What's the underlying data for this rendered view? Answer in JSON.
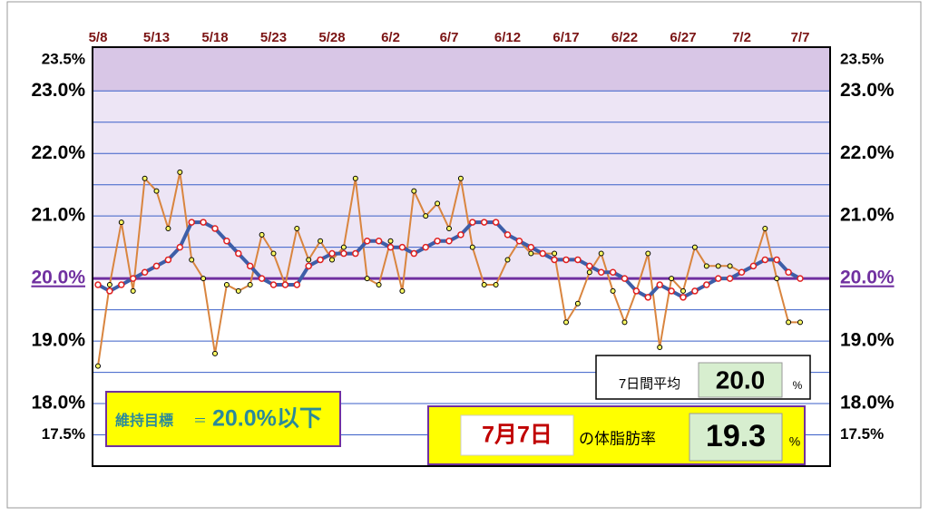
{
  "chart_data": {
    "type": "line",
    "categories": [
      "5/8",
      null,
      null,
      null,
      null,
      "5/13",
      null,
      null,
      null,
      null,
      "5/18",
      null,
      null,
      null,
      null,
      "5/23",
      null,
      null,
      null,
      null,
      "5/28",
      null,
      null,
      null,
      null,
      "6/2",
      null,
      null,
      null,
      null,
      "6/7",
      null,
      null,
      null,
      null,
      "6/12",
      null,
      null,
      null,
      null,
      "6/17",
      null,
      null,
      null,
      null,
      "6/22",
      null,
      null,
      null,
      null,
      "6/27",
      null,
      null,
      null,
      null,
      "7/2",
      null,
      null,
      null,
      null,
      "7/7"
    ],
    "series": [
      {
        "color": "#d9853f",
        "marker_color": "#ffff66",
        "values": [
          18.6,
          19.9,
          20.9,
          19.8,
          21.6,
          21.4,
          20.8,
          21.7,
          20.3,
          20.0,
          18.8,
          19.9,
          19.8,
          19.9,
          20.7,
          20.4,
          19.9,
          20.8,
          20.3,
          20.6,
          20.3,
          20.5,
          21.6,
          20.0,
          19.9,
          20.6,
          19.8,
          21.4,
          21.0,
          21.2,
          20.8,
          21.6,
          20.5,
          19.9,
          19.9,
          20.3,
          20.6,
          20.4,
          20.4,
          20.4,
          19.3,
          19.6,
          20.1,
          20.4,
          19.8,
          19.3,
          19.8,
          20.4,
          18.9,
          20.0,
          19.8,
          20.5,
          20.2,
          20.2,
          20.2,
          20.1,
          20.2,
          20.8,
          20.0,
          19.3,
          19.3
        ]
      },
      {
        "color": "#3d5ea8",
        "marker_color": "#e02020",
        "values": [
          19.9,
          19.8,
          19.9,
          20.0,
          20.1,
          20.2,
          20.3,
          20.5,
          20.9,
          20.9,
          20.8,
          20.6,
          20.4,
          20.2,
          20.0,
          19.9,
          19.9,
          19.9,
          20.2,
          20.3,
          20.4,
          20.4,
          20.4,
          20.6,
          20.6,
          20.5,
          20.5,
          20.4,
          20.5,
          20.6,
          20.6,
          20.7,
          20.9,
          20.9,
          20.9,
          20.7,
          20.6,
          20.5,
          20.4,
          20.3,
          20.3,
          20.3,
          20.2,
          20.1,
          20.1,
          20.0,
          19.8,
          19.7,
          19.9,
          19.8,
          19.7,
          19.8,
          19.9,
          20.0,
          20.0,
          20.1,
          20.2,
          20.3,
          20.3,
          20.1,
          20.0
        ]
      }
    ],
    "ylim": [
      17.0,
      23.7
    ],
    "yticks": [
      {
        "value": 23.5,
        "label": "23.5%"
      },
      {
        "value": 23.0,
        "label": "23.0%"
      },
      {
        "value": 22.0,
        "label": "22.0%"
      },
      {
        "value": 21.0,
        "label": "21.0%"
      },
      {
        "value": 20.0,
        "label": "20.0%"
      },
      {
        "value": 19.0,
        "label": "19.0%"
      },
      {
        "value": 18.0,
        "label": "18.0%"
      },
      {
        "value": 17.5,
        "label": "17.5%"
      }
    ],
    "grid_lines": [
      17.5,
      18.0,
      18.5,
      19.0,
      19.5,
      20.0,
      20.5,
      21.0,
      21.5,
      22.0,
      22.5,
      23.0
    ],
    "zones": [
      {
        "from": 23.0,
        "to": 23.7,
        "color": "#d8c6e6"
      },
      {
        "from": 20.0,
        "to": 23.0,
        "color": "#ede5f5"
      }
    ],
    "target": 20.0,
    "target_color": "#7030a0",
    "annotations": {
      "avg_label": "7日間平均",
      "avg_value": "20.0",
      "avg_unit": "%",
      "goal_label": "維持目標",
      "goal_eq": "＝",
      "goal_value": "20.0%以下",
      "today_date": "7月7日",
      "today_label": "の体脂肪率",
      "today_value": "19.3",
      "today_unit": "%"
    }
  }
}
